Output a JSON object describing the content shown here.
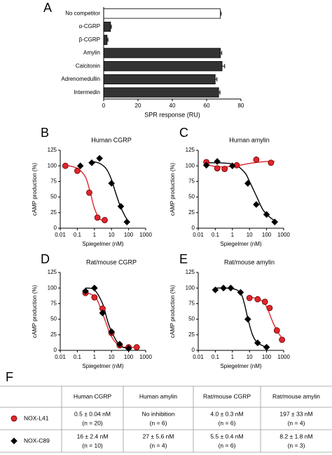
{
  "chart_data": [
    {
      "panel": "A",
      "type": "hbar",
      "categories": [
        "No competitor",
        "α-CGRP",
        "β-CGRP",
        "Amylin",
        "Calcitonin",
        "Adrenomedullin",
        "Intermedin"
      ],
      "values": [
        68,
        4,
        2,
        68,
        69,
        65,
        67
      ],
      "errors": [
        0.5,
        0.5,
        0.5,
        0.8,
        1.5,
        1,
        0.8
      ],
      "colors": [
        "#ffffff",
        "#333333",
        "#333333",
        "#333333",
        "#333333",
        "#333333",
        "#333333"
      ],
      "xlim": [
        0,
        80
      ],
      "xticks": [
        0,
        20,
        40,
        60,
        80
      ],
      "xlabel": "SPR response (RU)"
    },
    {
      "panel": "B",
      "type": "dose_response",
      "title": "Human CGRP",
      "xlabel": "Spiegelmer (nM)",
      "ylabel": "cAMP production (%)",
      "log_x": true,
      "xlim": [
        0.01,
        1000
      ],
      "xticks": [
        0.01,
        0.1,
        1,
        10,
        100,
        1000
      ],
      "ylim": [
        0,
        125
      ],
      "yticks": [
        0,
        25,
        50,
        75,
        100,
        125
      ],
      "series": [
        {
          "color": "#e0262b",
          "marker": "circle",
          "x": [
            0.02,
            0.1,
            0.5,
            1.5,
            4
          ],
          "values": [
            100,
            92,
            57,
            17,
            13
          ],
          "fit_x": [
            0.02,
            0.1,
            0.3,
            0.6,
            1,
            2,
            4
          ],
          "fit_values": [
            101,
            96,
            82,
            55,
            32,
            15,
            12
          ]
        },
        {
          "color": "#000000",
          "marker": "diamond",
          "x": [
            0.15,
            0.7,
            2,
            10,
            35,
            80
          ],
          "values": [
            100,
            105,
            112,
            72,
            35,
            10
          ],
          "fit_x": [
            0.7,
            2,
            5,
            10,
            16,
            30,
            60,
            100
          ],
          "fit_values": [
            107,
            104,
            95,
            78,
            60,
            38,
            20,
            10
          ]
        }
      ]
    },
    {
      "panel": "C",
      "type": "dose_response",
      "title": "Human amylin",
      "xlabel": "Spiegelmer (nM)",
      "ylabel": "cAMP production (%)",
      "log_x": true,
      "xlim": [
        0.01,
        1000
      ],
      "xticks": [
        0.01,
        0.1,
        1,
        10,
        100,
        1000
      ],
      "ylim": [
        0,
        125
      ],
      "yticks": [
        0,
        25,
        50,
        75,
        100,
        125
      ],
      "series": [
        {
          "color": "#e0262b",
          "marker": "circle",
          "x": [
            0.03,
            0.13,
            0.35,
            1.8,
            25,
            180
          ],
          "values": [
            106,
            96,
            95,
            101,
            110,
            105
          ],
          "fit_x": [
            0.03,
            0.1,
            1,
            10,
            100,
            300
          ],
          "fit_values": [
            103,
            99,
            99,
            104,
            107,
            107
          ]
        },
        {
          "color": "#000000",
          "marker": "diamond",
          "x": [
            0.03,
            0.13,
            1,
            8,
            25,
            100,
            300
          ],
          "values": [
            101,
            107,
            100,
            72,
            38,
            22,
            10
          ],
          "fit_x": [
            0.03,
            1,
            5,
            10,
            27,
            60,
            150,
            300
          ],
          "fit_values": [
            105,
            103,
            90,
            75,
            50,
            30,
            18,
            12
          ]
        }
      ]
    },
    {
      "panel": "D",
      "type": "dose_response",
      "title": "Rat/mouse CGRP",
      "xlabel": "Spiegelmer (nM)",
      "ylabel": "cAMP production (%)",
      "log_x": true,
      "xlim": [
        0.01,
        1000
      ],
      "xticks": [
        0.01,
        0.1,
        1,
        10,
        100,
        1000
      ],
      "ylim": [
        0,
        125
      ],
      "yticks": [
        0,
        25,
        50,
        75,
        100,
        125
      ],
      "series": [
        {
          "color": "#e0262b",
          "marker": "circle",
          "x": [
            0.3,
            1,
            3,
            10,
            30,
            100,
            300
          ],
          "values": [
            92,
            85,
            67,
            28,
            8,
            5,
            5
          ],
          "fit_x": [
            0.2,
            1,
            2,
            4,
            10,
            30,
            100,
            300
          ],
          "fit_values": [
            95,
            87,
            72,
            50,
            22,
            7,
            5,
            5
          ]
        },
        {
          "color": "#000000",
          "marker": "diamond",
          "x": [
            0.3,
            1,
            3,
            10,
            30,
            100
          ],
          "values": [
            95,
            100,
            60,
            30,
            10,
            3
          ],
          "fit_x": [
            0.3,
            1,
            3,
            5.5,
            10,
            30,
            100
          ],
          "fit_values": [
            100,
            97,
            75,
            50,
            30,
            8,
            3
          ]
        }
      ]
    },
    {
      "panel": "E",
      "type": "dose_response",
      "title": "Rat/mouse amylin",
      "xlabel": "Spiegelmer (nM)",
      "ylabel": "cAMP production (%)",
      "log_x": true,
      "xlim": [
        0.01,
        1000
      ],
      "xticks": [
        0.01,
        0.1,
        1,
        10,
        100,
        1000
      ],
      "ylim": [
        0,
        125
      ],
      "yticks": [
        0,
        25,
        50,
        75,
        100,
        125
      ],
      "series": [
        {
          "color": "#e0262b",
          "marker": "circle",
          "x": [
            10,
            30,
            80,
            150,
            400,
            800
          ],
          "values": [
            84,
            82,
            78,
            68,
            32,
            17
          ],
          "fit_x": [
            10,
            50,
            100,
            197,
            400,
            1000
          ],
          "fit_values": [
            86,
            80,
            70,
            50,
            32,
            16
          ]
        },
        {
          "color": "#000000",
          "marker": "diamond",
          "x": [
            0.1,
            0.3,
            0.8,
            3,
            8,
            30,
            100
          ],
          "values": [
            97,
            100,
            100,
            93,
            50,
            12,
            5
          ],
          "fit_x": [
            0.1,
            1,
            3,
            5,
            8.2,
            15,
            30,
            100
          ],
          "fit_values": [
            100,
            99,
            92,
            75,
            50,
            25,
            12,
            5
          ]
        }
      ]
    }
  ],
  "table": {
    "panel": "F",
    "columns": [
      "Human CGRP",
      "Human amylin",
      "Rat/mouse CGRP",
      "Rat/mouse amylin"
    ],
    "rows": [
      {
        "label": "NOX-L41",
        "color": "#e0262b",
        "marker": "circle",
        "cells": [
          [
            "0.5 ± 0.04 nM",
            "(n = 20)"
          ],
          [
            "No inhibition",
            "(n = 6)"
          ],
          [
            "4.0 ± 0.3 nM",
            "(n = 6)"
          ],
          [
            "197 ± 33 nM",
            "(n = 4)"
          ]
        ]
      },
      {
        "label": "NOX-C89",
        "color": "#000000",
        "marker": "diamond",
        "cells": [
          [
            "16 ± 2.4 nM",
            "(n = 10)"
          ],
          [
            "27 ± 5.6 nM",
            "(n = 4)"
          ],
          [
            "5.5 ± 0.4 nM",
            "(n = 6)"
          ],
          [
            "8.2 ± 1.8 nM",
            "(n = 3)"
          ]
        ]
      }
    ]
  }
}
